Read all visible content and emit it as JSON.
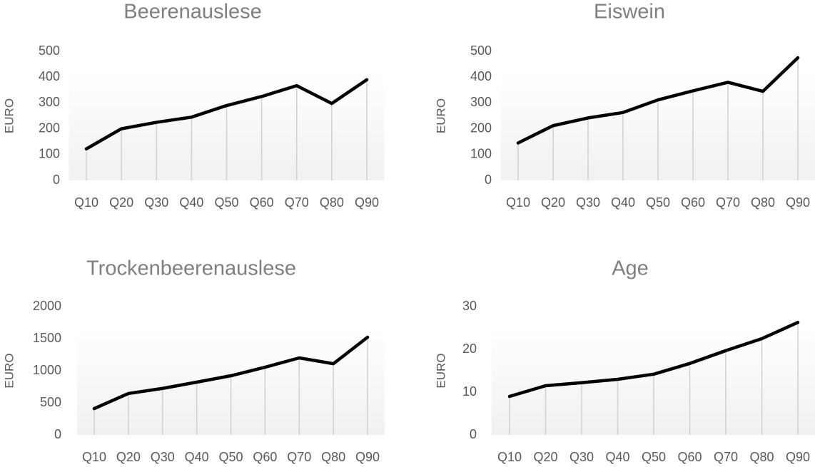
{
  "chart_data": [
    {
      "type": "line",
      "title": "Beerenauslese",
      "y_label": "EURO",
      "categories": [
        "Q10",
        "Q20",
        "Q30",
        "Q40",
        "Q50",
        "Q60",
        "Q70",
        "Q80",
        "Q90"
      ],
      "values": [
        122,
        200,
        225,
        245,
        290,
        325,
        367,
        298,
        390
      ],
      "color": "#000000",
      "drop_lines": true,
      "ylim": [
        0,
        500
      ],
      "yticks": [
        0,
        100,
        200,
        300,
        400,
        500
      ]
    },
    {
      "type": "line",
      "title": "Eiswein",
      "y_label": "EURO",
      "categories": [
        "Q10",
        "Q20",
        "Q30",
        "Q40",
        "Q50",
        "Q60",
        "Q70",
        "Q80",
        "Q90"
      ],
      "values": [
        145,
        212,
        242,
        263,
        312,
        347,
        380,
        345,
        475
      ],
      "color": "#000000",
      "drop_lines": true,
      "ylim": [
        0,
        500
      ],
      "yticks": [
        0,
        100,
        200,
        300,
        400,
        500
      ]
    },
    {
      "type": "line",
      "title": "Trockenbeerenauslese",
      "y_label": "EURO",
      "categories": [
        "Q10",
        "Q20",
        "Q30",
        "Q40",
        "Q50",
        "Q60",
        "Q70",
        "Q80",
        "Q90"
      ],
      "values": [
        410,
        645,
        725,
        822,
        922,
        1055,
        1200,
        1110,
        1522
      ],
      "color": "#000000",
      "drop_lines": true,
      "ylim": [
        0,
        2000
      ],
      "yticks": [
        0,
        500,
        1000,
        1500,
        2000
      ]
    },
    {
      "type": "line",
      "title": "Age",
      "y_label": "EURO",
      "categories": [
        "Q10",
        "Q20",
        "Q30",
        "Q40",
        "Q50",
        "Q60",
        "Q70",
        "Q80",
        "Q90"
      ],
      "values": [
        9,
        11.5,
        12.2,
        13,
        14.2,
        16.7,
        19.7,
        22.5,
        26.3
      ],
      "color": "#000000",
      "drop_lines": true,
      "ylim": [
        0,
        30
      ],
      "yticks": [
        0,
        10,
        20,
        30
      ]
    }
  ]
}
